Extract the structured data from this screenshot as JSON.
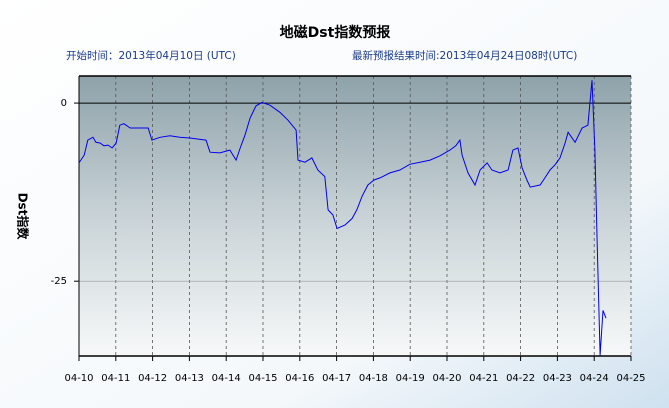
{
  "chart_data": {
    "type": "line",
    "title": "地磁Dst指数预报",
    "subtitle_left": "开始时间：2013年04月10日 (UTC)",
    "subtitle_right": "最新预报结果时间:2013年04月24日08时(UTC)",
    "ylabel": "Dst指数",
    "xlim": [
      0,
      15
    ],
    "xticks": [
      {
        "value": 0,
        "label": "04-10"
      },
      {
        "value": 1,
        "label": "04-11"
      },
      {
        "value": 2,
        "label": "04-12"
      },
      {
        "value": 3,
        "label": "04-13"
      },
      {
        "value": 4,
        "label": "04-14"
      },
      {
        "value": 5,
        "label": "04-15"
      },
      {
        "value": 6,
        "label": "04-16"
      },
      {
        "value": 7,
        "label": "04-17"
      },
      {
        "value": 8,
        "label": "04-18"
      },
      {
        "value": 9,
        "label": "04-19"
      },
      {
        "value": 10,
        "label": "04-20"
      },
      {
        "value": 11,
        "label": "04-21"
      },
      {
        "value": 12,
        "label": "04-22"
      },
      {
        "value": 13,
        "label": "04-23"
      },
      {
        "value": 14,
        "label": "04-24"
      },
      {
        "value": 15,
        "label": "04-25"
      }
    ],
    "ylim": [
      -35.5,
      3.8
    ],
    "yticks": [
      0,
      -25
    ],
    "grid": true,
    "series": [
      {
        "color": "#0000ee",
        "x": [
          0,
          0.14,
          0.24,
          0.38,
          0.46,
          0.57,
          0.68,
          0.79,
          0.9,
          1.01,
          1.11,
          1.22,
          1.39,
          1.66,
          1.88,
          1.98,
          2.2,
          2.47,
          2.74,
          3.02,
          3.29,
          3.45,
          3.56,
          3.83,
          4.1,
          4.27,
          4.38,
          4.51,
          4.65,
          4.81,
          4.97,
          5.19,
          5.46,
          5.68,
          5.9,
          5.95,
          6.14,
          6.33,
          6.49,
          6.68,
          6.77,
          6.9,
          7.01,
          7.23,
          7.42,
          7.55,
          7.69,
          7.85,
          8.02,
          8.18,
          8.45,
          8.72,
          8.99,
          9.27,
          9.54,
          9.81,
          10.08,
          10.24,
          10.35,
          10.41,
          10.57,
          10.76,
          10.9,
          11.09,
          11.22,
          11.44,
          11.66,
          11.79,
          11.93,
          12.04,
          12.17,
          12.26,
          12.53,
          12.66,
          12.8,
          12.93,
          13.07,
          13.21,
          13.29,
          13.48,
          13.67,
          13.83,
          13.94,
          14.02,
          14.08,
          14.16,
          14.24,
          14.32
        ],
        "values": [
          -8.4,
          -7.3,
          -5.2,
          -4.8,
          -5.5,
          -5.6,
          -6.0,
          -5.9,
          -6.3,
          -5.6,
          -3.1,
          -2.9,
          -3.5,
          -3.5,
          -3.5,
          -5.2,
          -4.8,
          -4.6,
          -4.8,
          -4.9,
          -5.1,
          -5.2,
          -6.9,
          -7.0,
          -6.6,
          -8.0,
          -6.3,
          -4.5,
          -2.1,
          -0.4,
          0.1,
          -0.3,
          -1.3,
          -2.4,
          -3.8,
          -8.0,
          -8.3,
          -7.7,
          -9.4,
          -10.3,
          -15.0,
          -15.7,
          -17.6,
          -17.1,
          -16.2,
          -15.0,
          -13.1,
          -11.5,
          -10.8,
          -10.5,
          -9.8,
          -9.4,
          -8.6,
          -8.3,
          -8.0,
          -7.4,
          -6.6,
          -6.0,
          -5.2,
          -7.3,
          -9.8,
          -11.5,
          -9.4,
          -8.4,
          -9.4,
          -9.8,
          -9.4,
          -6.6,
          -6.3,
          -9.1,
          -10.8,
          -11.8,
          -11.5,
          -10.5,
          -9.4,
          -8.7,
          -7.7,
          -5.6,
          -4.1,
          -5.5,
          -3.5,
          -3.1,
          3.2,
          -6.6,
          -19.2,
          -35.4,
          -29.1,
          -30.2
        ]
      }
    ]
  }
}
